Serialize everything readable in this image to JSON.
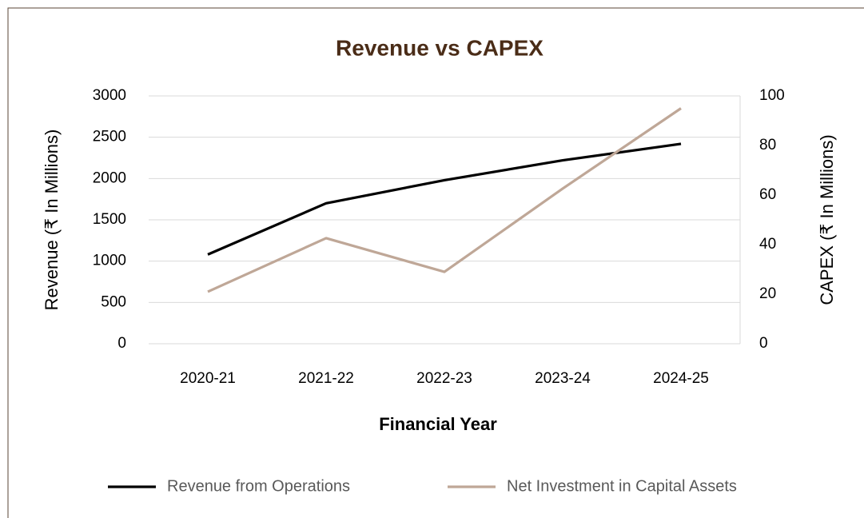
{
  "chart_data": {
    "type": "line",
    "title": "Revenue vs CAPEX",
    "x_label": "Financial Year",
    "y_label": "Revenue (₹ In Millions)",
    "y2_label": "CAPEX (₹ In Millions)",
    "categories": [
      "2020-21",
      "2021-22",
      "2022-23",
      "2023-24",
      "2024-25"
    ],
    "series": [
      {
        "name": "Revenue from Operations",
        "color": "#000000",
        "values": [
          1080,
          1700,
          1980,
          2220,
          2420
        ]
      },
      {
        "name": "Net Investment in Capital Assets",
        "color": "#bfa797",
        "axis": "y2",
        "values": [
          21,
          42.6,
          29,
          62.6,
          95
        ]
      }
    ],
    "ylim": [
      0,
      3000
    ],
    "yticks": [
      0,
      500,
      1000,
      1500,
      2000,
      2500,
      3000
    ],
    "y2lim": [
      0,
      100
    ],
    "y2ticks": [
      0,
      20,
      40,
      60,
      80,
      100
    ],
    "grid": true,
    "legend": "bottom"
  }
}
